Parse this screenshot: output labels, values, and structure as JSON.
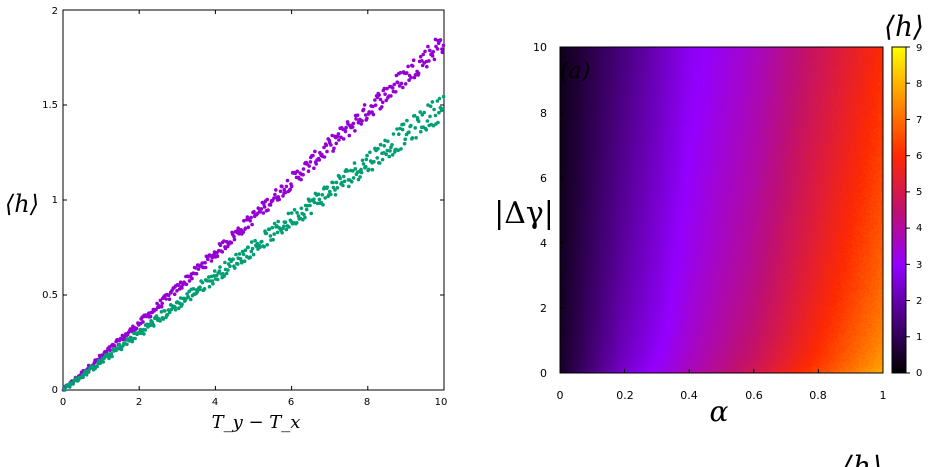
{
  "chart_data": [
    {
      "type": "scatter",
      "ylabel": "⟨h⟩",
      "xlabel": "T_y − T_x",
      "xlim": [
        0,
        10
      ],
      "ylim": [
        0,
        2
      ],
      "xticks": [
        "0",
        "2",
        "4",
        "6",
        "8",
        "10"
      ],
      "yticks": [
        "0",
        "0.5",
        "1",
        "1.5",
        "2"
      ],
      "series": [
        {
          "color": "#9400d3",
          "trend": {
            "x": [
              0,
              2,
              4,
              6,
              8,
              10
            ],
            "y": [
              0,
              0.35,
              0.72,
              1.1,
              1.47,
              1.84
            ]
          },
          "x_range": [
            0,
            10
          ],
          "spread": 0.06
        },
        {
          "color": "#009e73",
          "trend": {
            "x": [
              0,
              2,
              4,
              6,
              8,
              10
            ],
            "y": [
              0,
              0.3,
              0.6,
              0.9,
              1.2,
              1.5
            ]
          },
          "x_range": [
            0,
            10
          ],
          "spread": 0.07
        }
      ]
    },
    {
      "type": "heatmap",
      "annotation": "(a)",
      "annotation_color": "#33cc33",
      "xlabel": "α",
      "ylabel": "|Δγ|",
      "xlim": [
        0,
        1
      ],
      "ylim": [
        0,
        10
      ],
      "xticks": [
        "0",
        "0.2",
        "0.4",
        "0.6",
        "0.8",
        "1"
      ],
      "yticks": [
        "0",
        "2",
        "4",
        "6",
        "8",
        "10"
      ],
      "colorbar": {
        "label": "⟨h⟩",
        "range": [
          0,
          9
        ],
        "ticks": [
          "0",
          "1",
          "2",
          "3",
          "4",
          "5",
          "6",
          "7",
          "8",
          "9"
        ],
        "palette": [
          "#000000",
          "#9400ff",
          "#ff1a00",
          "#ffff00"
        ]
      },
      "value_samples": {
        "note_alpha": [
          0,
          0.2,
          0.4,
          0.6,
          0.8,
          1.0
        ],
        "at_gamma0": [
          0.5,
          2.5,
          3.8,
          5.0,
          6.5,
          8.0
        ],
        "at_gamma10": [
          0.3,
          1.5,
          2.8,
          3.6,
          4.8,
          6.0
        ]
      }
    }
  ],
  "bottom_label": "⟨h⟩"
}
